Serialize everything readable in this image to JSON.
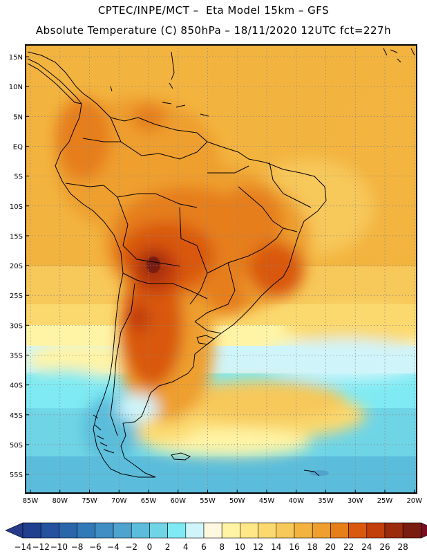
{
  "header": {
    "line1": "CPTEC/INPE/MCT –  Eta Model 15km – GFS",
    "line2": "Absolute Temperature (C) 850hPa – 18/11/2020 12UTC fct=227h"
  },
  "map": {
    "lat_ticks": [
      "15N",
      "10N",
      "5N",
      "EQ",
      "5S",
      "10S",
      "15S",
      "20S",
      "25S",
      "30S",
      "35S",
      "40S",
      "45S",
      "50S",
      "55S"
    ],
    "lon_ticks": [
      "85W",
      "80W",
      "75W",
      "70W",
      "65W",
      "60W",
      "55W",
      "50W",
      "45W",
      "40W",
      "35W",
      "30W",
      "25W",
      "20W"
    ]
  },
  "colorbar": {
    "labels": [
      "-14",
      "-12",
      "-10",
      "-8",
      "-6",
      "-4",
      "-2",
      "0",
      "2",
      "4",
      "6",
      "8",
      "10",
      "12",
      "14",
      "16",
      "18",
      "20",
      "22",
      "24",
      "26",
      "28"
    ],
    "colors": [
      "#1f3f8f",
      "#24529e",
      "#2b66ab",
      "#3279b8",
      "#3f8fc4",
      "#4ea4cf",
      "#5bbddb",
      "#6fd5e6",
      "#7feaf3",
      "#cff5fb",
      "#fff8e1",
      "#fff4a6",
      "#ffe787",
      "#fbd96e",
      "#f7c85a",
      "#f3b43f",
      "#ee9f2e",
      "#e67e1a",
      "#d9590e",
      "#c23e0a",
      "#9c2a0c",
      "#7a1d10"
    ],
    "low_arrow_color": "#253a8a",
    "high_arrow_color": "#7a0d24"
  }
}
